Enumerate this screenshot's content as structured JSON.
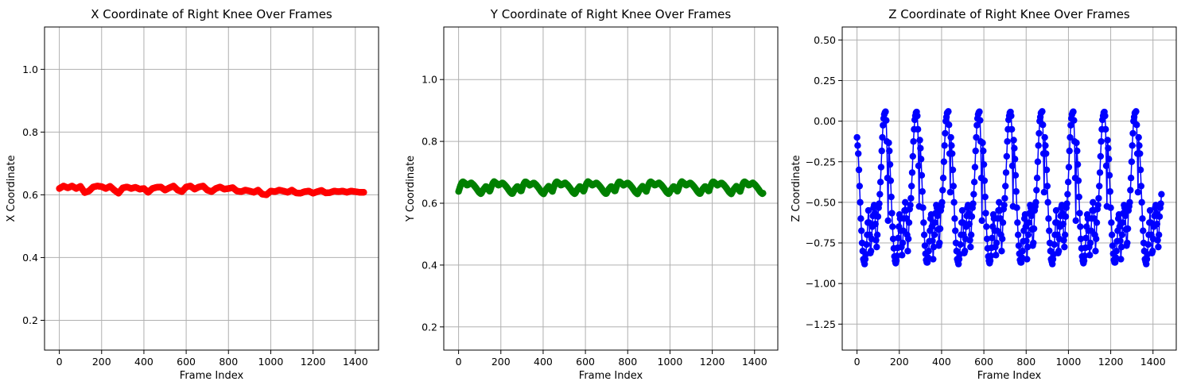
{
  "chart_data": [
    {
      "type": "line",
      "title": "X Coordinate of Right Knee Over Frames",
      "xlabel": "Frame Index",
      "ylabel": "X Coordinate",
      "xlim": [
        -70,
        1510
      ],
      "ylim": [
        0.105,
        1.135
      ],
      "xticks": [
        0,
        200,
        400,
        600,
        800,
        1000,
        1200,
        1400
      ],
      "yticks": [
        0.2,
        0.4,
        0.6,
        0.8,
        1.0
      ],
      "ytick_labels": [
        "0.2",
        "0.4",
        "0.6",
        "0.8",
        "1.0"
      ],
      "grid": true,
      "color": "#ff0000",
      "marker": "circle",
      "x_range": [
        0,
        1440
      ],
      "points": [
        [
          0,
          0.62
        ],
        [
          20,
          0.628
        ],
        [
          40,
          0.622
        ],
        [
          60,
          0.628
        ],
        [
          80,
          0.62
        ],
        [
          100,
          0.627
        ],
        [
          120,
          0.607
        ],
        [
          140,
          0.612
        ],
        [
          160,
          0.625
        ],
        [
          180,
          0.628
        ],
        [
          200,
          0.626
        ],
        [
          220,
          0.62
        ],
        [
          240,
          0.627
        ],
        [
          260,
          0.615
        ],
        [
          280,
          0.605
        ],
        [
          300,
          0.622
        ],
        [
          320,
          0.625
        ],
        [
          340,
          0.62
        ],
        [
          360,
          0.624
        ],
        [
          380,
          0.618
        ],
        [
          400,
          0.62
        ],
        [
          420,
          0.608
        ],
        [
          440,
          0.62
        ],
        [
          460,
          0.624
        ],
        [
          480,
          0.625
        ],
        [
          500,
          0.615
        ],
        [
          520,
          0.622
        ],
        [
          540,
          0.628
        ],
        [
          560,
          0.615
        ],
        [
          580,
          0.61
        ],
        [
          600,
          0.625
        ],
        [
          620,
          0.628
        ],
        [
          640,
          0.618
        ],
        [
          660,
          0.625
        ],
        [
          680,
          0.628
        ],
        [
          700,
          0.615
        ],
        [
          720,
          0.61
        ],
        [
          740,
          0.62
        ],
        [
          760,
          0.625
        ],
        [
          780,
          0.618
        ],
        [
          800,
          0.62
        ],
        [
          820,
          0.623
        ],
        [
          840,
          0.612
        ],
        [
          860,
          0.61
        ],
        [
          880,
          0.615
        ],
        [
          900,
          0.612
        ],
        [
          920,
          0.608
        ],
        [
          940,
          0.615
        ],
        [
          960,
          0.602
        ],
        [
          980,
          0.6
        ],
        [
          1000,
          0.612
        ],
        [
          1020,
          0.61
        ],
        [
          1040,
          0.615
        ],
        [
          1060,
          0.612
        ],
        [
          1080,
          0.608
        ],
        [
          1100,
          0.615
        ],
        [
          1120,
          0.606
        ],
        [
          1140,
          0.605
        ],
        [
          1160,
          0.61
        ],
        [
          1180,
          0.612
        ],
        [
          1200,
          0.605
        ],
        [
          1220,
          0.61
        ],
        [
          1240,
          0.614
        ],
        [
          1260,
          0.606
        ],
        [
          1280,
          0.607
        ],
        [
          1300,
          0.612
        ],
        [
          1320,
          0.61
        ],
        [
          1340,
          0.612
        ],
        [
          1360,
          0.608
        ],
        [
          1380,
          0.612
        ],
        [
          1400,
          0.61
        ],
        [
          1420,
          0.608
        ],
        [
          1440,
          0.608
        ]
      ]
    },
    {
      "type": "line",
      "title": "Y Coordinate of Right Knee Over Frames",
      "xlabel": "Frame Index",
      "ylabel": "Y Coordinate",
      "xlim": [
        -70,
        1510
      ],
      "ylim": [
        0.125,
        1.17
      ],
      "xticks": [
        0,
        200,
        400,
        600,
        800,
        1000,
        1200,
        1400
      ],
      "yticks": [
        0.2,
        0.4,
        0.6,
        0.8,
        1.0
      ],
      "ytick_labels": [
        "0.2",
        "0.4",
        "0.6",
        "0.8",
        "1.0"
      ],
      "grid": true,
      "color": "#008000",
      "marker": "circle",
      "x_range": [
        0,
        1440
      ],
      "period": 148,
      "waveform": [
        [
          0,
          0.638
        ],
        [
          8,
          0.655
        ],
        [
          14,
          0.665
        ],
        [
          20,
          0.67
        ],
        [
          30,
          0.665
        ],
        [
          40,
          0.658
        ],
        [
          50,
          0.662
        ],
        [
          60,
          0.666
        ],
        [
          70,
          0.66
        ],
        [
          82,
          0.65
        ],
        [
          96,
          0.636
        ],
        [
          106,
          0.63
        ],
        [
          118,
          0.645
        ],
        [
          130,
          0.655
        ],
        [
          140,
          0.645
        ],
        [
          148,
          0.638
        ]
      ]
    },
    {
      "type": "line",
      "title": "Z Coordinate of Right Knee Over Frames",
      "xlabel": "Frame Index",
      "ylabel": "Z Coordinate",
      "xlim": [
        -70,
        1510
      ],
      "ylim": [
        -1.41,
        0.58
      ],
      "xticks": [
        0,
        200,
        400,
        600,
        800,
        1000,
        1200,
        1400
      ],
      "yticks": [
        0.5,
        0.25,
        0.0,
        -0.25,
        -0.5,
        -0.75,
        -1.0,
        -1.25
      ],
      "ytick_labels": [
        "0.50",
        "0.25",
        "0.00",
        "−0.25",
        "−0.50",
        "−0.75",
        "−1.00",
        "−1.25"
      ],
      "grid": true,
      "color": "#0000ff",
      "marker": "circle",
      "x_range": [
        0,
        1440
      ],
      "period": 148,
      "waveform": [
        [
          0,
          -0.1
        ],
        [
          6,
          -0.2
        ],
        [
          12,
          -0.4
        ],
        [
          18,
          -0.6
        ],
        [
          24,
          -0.75
        ],
        [
          30,
          -0.85
        ],
        [
          36,
          -0.88
        ],
        [
          42,
          -0.82
        ],
        [
          48,
          -0.7
        ],
        [
          54,
          -0.55
        ],
        [
          60,
          -0.7
        ],
        [
          64,
          -0.85
        ],
        [
          68,
          -0.75
        ],
        [
          74,
          -0.6
        ],
        [
          80,
          -0.5
        ],
        [
          86,
          -0.6
        ],
        [
          92,
          -0.8
        ],
        [
          96,
          -0.7
        ],
        [
          100,
          -0.55
        ],
        [
          106,
          -0.5
        ],
        [
          112,
          -0.35
        ],
        [
          118,
          -0.15
        ],
        [
          124,
          0.0
        ],
        [
          130,
          0.05
        ],
        [
          136,
          0.06
        ],
        [
          140,
          -0.05
        ],
        [
          144,
          -0.35
        ],
        [
          148,
          -0.7
        ]
      ]
    }
  ]
}
